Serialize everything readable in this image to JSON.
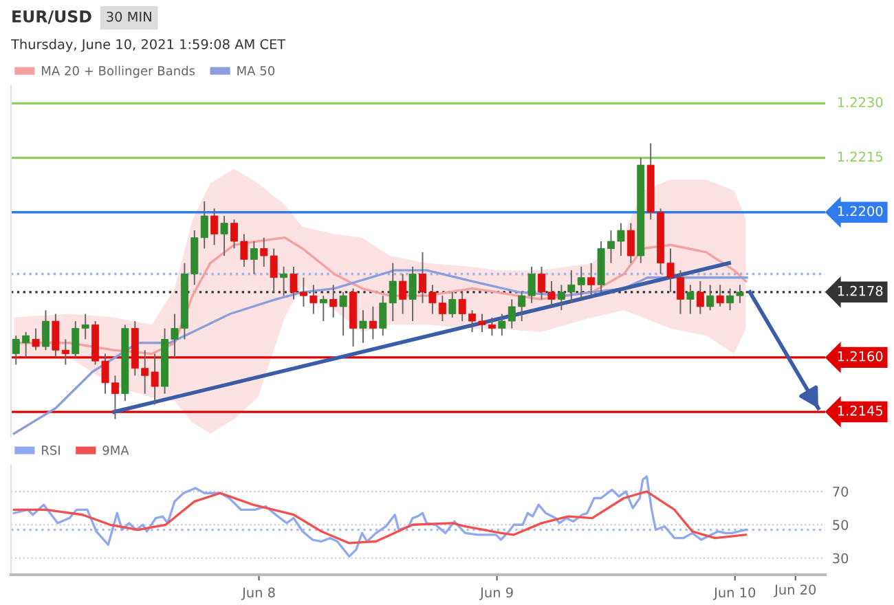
{
  "chart_data": [
    {
      "type": "candlestick",
      "title": "EUR/USD",
      "subtitle": "Thursday, June 10, 2021 1:59:08 AM CET",
      "annotations": [
        "30 MIN"
      ],
      "x": [
        "2021-06-06T23:30",
        "2021-06-07T00:30",
        "2021-06-07T01:30",
        "2021-06-07T02:30",
        "2021-06-07T03:30",
        "2021-06-07T04:30",
        "2021-06-07T05:30",
        "2021-06-07T06:30",
        "2021-06-07T07:30",
        "2021-06-07T08:30",
        "2021-06-07T09:30",
        "2021-06-07T10:30",
        "2021-06-07T11:30",
        "2021-06-07T12:30",
        "2021-06-07T13:30",
        "2021-06-07T14:30",
        "2021-06-07T15:30",
        "2021-06-07T16:30",
        "2021-06-07T17:30",
        "2021-06-07T18:30",
        "2021-06-07T19:30",
        "2021-06-07T20:30",
        "2021-06-07T21:30",
        "2021-06-07T22:30",
        "2021-06-07T23:30",
        "2021-06-08T00:30",
        "2021-06-08T01:30",
        "2021-06-08T02:30",
        "2021-06-08T03:30",
        "2021-06-08T04:30",
        "2021-06-08T05:30",
        "2021-06-08T06:30",
        "2021-06-08T07:30",
        "2021-06-08T08:30",
        "2021-06-08T09:30",
        "2021-06-08T10:30",
        "2021-06-08T11:30",
        "2021-06-08T12:30",
        "2021-06-08T13:30",
        "2021-06-08T14:30",
        "2021-06-08T15:30",
        "2021-06-08T16:30",
        "2021-06-08T17:30",
        "2021-06-08T18:30",
        "2021-06-08T19:30",
        "2021-06-08T20:30",
        "2021-06-08T21:30",
        "2021-06-08T22:30",
        "2021-06-08T23:30",
        "2021-06-09T00:30",
        "2021-06-09T01:30",
        "2021-06-09T02:30",
        "2021-06-09T03:30",
        "2021-06-09T04:30",
        "2021-06-09T05:30",
        "2021-06-09T06:30",
        "2021-06-09T07:30",
        "2021-06-09T08:30",
        "2021-06-09T09:30",
        "2021-06-09T10:30",
        "2021-06-09T11:30",
        "2021-06-09T12:30",
        "2021-06-09T13:30",
        "2021-06-09T14:30",
        "2021-06-09T15:30",
        "2021-06-09T16:30",
        "2021-06-09T17:30",
        "2021-06-09T18:30",
        "2021-06-09T19:30",
        "2021-06-09T20:30",
        "2021-06-09T21:30",
        "2021-06-09T22:30",
        "2021-06-09T23:30",
        "2021-06-10T00:30"
      ],
      "ohlc": [
        [
          1.2161,
          1.2166,
          1.2158,
          1.2165
        ],
        [
          1.2164,
          1.2167,
          1.216,
          1.2166
        ],
        [
          1.2165,
          1.2168,
          1.2162,
          1.2163
        ],
        [
          1.2163,
          1.2173,
          1.2162,
          1.217
        ],
        [
          1.217,
          1.2172,
          1.216,
          1.2162
        ],
        [
          1.2162,
          1.2165,
          1.2158,
          1.2161
        ],
        [
          1.2161,
          1.217,
          1.216,
          1.2168
        ],
        [
          1.2168,
          1.2172,
          1.2165,
          1.2169
        ],
        [
          1.2169,
          1.217,
          1.2158,
          1.2159
        ],
        [
          1.2159,
          1.2161,
          1.215,
          1.2153
        ],
        [
          1.2153,
          1.2155,
          1.2143,
          1.215
        ],
        [
          1.215,
          1.2169,
          1.2148,
          1.2168
        ],
        [
          1.2168,
          1.217,
          1.2155,
          1.2157
        ],
        [
          1.2157,
          1.2162,
          1.215,
          1.2155
        ],
        [
          1.2156,
          1.2161,
          1.2147,
          1.2152
        ],
        [
          1.2152,
          1.2168,
          1.215,
          1.2165
        ],
        [
          1.2165,
          1.2172,
          1.216,
          1.2168
        ],
        [
          1.2168,
          1.2186,
          1.2165,
          1.2183
        ],
        [
          1.2183,
          1.2195,
          1.218,
          1.2193
        ],
        [
          1.2193,
          1.2203,
          1.219,
          1.2199
        ],
        [
          1.2199,
          1.2201,
          1.2191,
          1.2194
        ],
        [
          1.2194,
          1.2199,
          1.2188,
          1.2197
        ],
        [
          1.2197,
          1.2198,
          1.219,
          1.2192
        ],
        [
          1.2192,
          1.2194,
          1.2185,
          1.2187
        ],
        [
          1.2187,
          1.2192,
          1.2183,
          1.219
        ],
        [
          1.219,
          1.2193,
          1.2185,
          1.2188
        ],
        [
          1.2188,
          1.219,
          1.2178,
          1.2182
        ],
        [
          1.2182,
          1.2185,
          1.2177,
          1.2183
        ],
        [
          1.2183,
          1.2185,
          1.2176,
          1.2178
        ],
        [
          1.2178,
          1.2182,
          1.2174,
          1.2177
        ],
        [
          1.2177,
          1.218,
          1.2172,
          1.2175
        ],
        [
          1.2175,
          1.2177,
          1.217,
          1.2176
        ],
        [
          1.2176,
          1.218,
          1.2171,
          1.2174
        ],
        [
          1.2174,
          1.2178,
          1.2166,
          1.2177
        ],
        [
          1.2178,
          1.2179,
          1.2163,
          1.2168
        ],
        [
          1.2168,
          1.2173,
          1.2164,
          1.217
        ],
        [
          1.217,
          1.2174,
          1.2165,
          1.2168
        ],
        [
          1.2168,
          1.2177,
          1.2166,
          1.2175
        ],
        [
          1.2175,
          1.2186,
          1.217,
          1.2181
        ],
        [
          1.2181,
          1.2183,
          1.2172,
          1.2176
        ],
        [
          1.2176,
          1.2185,
          1.217,
          1.2183
        ],
        [
          1.2183,
          1.2189,
          1.2175,
          1.2178
        ],
        [
          1.2178,
          1.218,
          1.2172,
          1.2175
        ],
        [
          1.2175,
          1.2177,
          1.217,
          1.2172
        ],
        [
          1.2172,
          1.2178,
          1.2171,
          1.2176
        ],
        [
          1.2176,
          1.2178,
          1.217,
          1.2172
        ],
        [
          1.2172,
          1.2173,
          1.2167,
          1.217
        ],
        [
          1.217,
          1.2172,
          1.2167,
          1.2169
        ],
        [
          1.2169,
          1.2171,
          1.2166,
          1.2168
        ],
        [
          1.2168,
          1.2172,
          1.2166,
          1.217
        ],
        [
          1.217,
          1.2176,
          1.2168,
          1.2174
        ],
        [
          1.2174,
          1.2178,
          1.217,
          1.2177
        ],
        [
          1.2177,
          1.2185,
          1.2175,
          1.2183
        ],
        [
          1.2183,
          1.2185,
          1.2176,
          1.2178
        ],
        [
          1.2178,
          1.2181,
          1.2174,
          1.2176
        ],
        [
          1.2176,
          1.218,
          1.2173,
          1.2178
        ],
        [
          1.2178,
          1.2184,
          1.2175,
          1.218
        ],
        [
          1.218,
          1.2185,
          1.2176,
          1.2182
        ],
        [
          1.2182,
          1.2186,
          1.2177,
          1.218
        ],
        [
          1.218,
          1.2192,
          1.2178,
          1.219
        ],
        [
          1.219,
          1.2195,
          1.2186,
          1.2192
        ],
        [
          1.2192,
          1.2197,
          1.2188,
          1.2195
        ],
        [
          1.2195,
          1.2197,
          1.2186,
          1.2188
        ],
        [
          1.2188,
          1.2215,
          1.2186,
          1.2213
        ],
        [
          1.2213,
          1.2219,
          1.2198,
          1.22
        ],
        [
          1.22,
          1.2201,
          1.2183,
          1.2186
        ],
        [
          1.2186,
          1.219,
          1.2178,
          1.2182
        ],
        [
          1.2182,
          1.2184,
          1.2172,
          1.2176
        ],
        [
          1.2176,
          1.218,
          1.2172,
          1.2178
        ],
        [
          1.2178,
          1.2181,
          1.2172,
          1.2174
        ],
        [
          1.2174,
          1.218,
          1.2173,
          1.2177
        ],
        [
          1.2177,
          1.218,
          1.2174,
          1.2175
        ],
        [
          1.2175,
          1.2179,
          1.2173,
          1.2177
        ],
        [
          1.2177,
          1.218,
          1.2175,
          1.2178
        ]
      ],
      "series": [
        {
          "name": "MA 20 + Bollinger Bands",
          "type": "line",
          "color": "#f4a0a0",
          "x": [
            "2021-06-06T23:18",
            "2021-06-07T04:54",
            "2021-06-07T09:24",
            "2021-06-07T13:12",
            "2021-06-07T15:30",
            "2021-06-07T17:18",
            "2021-06-07T19:06",
            "2021-06-07T21:30",
            "2021-06-07T23:54",
            "2021-06-08T02:36",
            "2021-06-08T04:24",
            "2021-06-08T07:36",
            "2021-06-08T10:24",
            "2021-06-08T13:12",
            "2021-06-08T16:54",
            "2021-06-08T21:30",
            "2021-06-08T23:54",
            "2021-06-09T04:24",
            "2021-06-09T09:36",
            "2021-06-09T12:48",
            "2021-06-09T14:42",
            "2021-06-09T17:30",
            "2021-06-09T21:06",
            "2021-06-09T23:54",
            "2021-06-10T01:06"
          ],
          "values": [
            1.2164,
            1.2164,
            1.2162,
            1.2161,
            1.2164,
            1.2177,
            1.2186,
            1.2191,
            1.2192,
            1.2193,
            1.219,
            1.2183,
            1.2179,
            1.2177,
            1.2177,
            1.2179,
            1.2178,
            1.2176,
            1.2178,
            1.2183,
            1.219,
            1.2191,
            1.2189,
            1.2184,
            1.2181
          ],
          "lower": [
            1.216,
            1.216,
            1.2152,
            1.2149,
            1.2148,
            1.2142,
            1.2139,
            1.2143,
            1.2149,
            1.2171,
            1.218,
            1.2173,
            1.2167,
            1.2169,
            1.2169,
            1.2168,
            1.2168,
            1.2167,
            1.2171,
            1.2173,
            1.2171,
            1.2168,
            1.2166,
            1.2161,
            1.2168
          ],
          "upper": [
            1.2171,
            1.2172,
            1.2171,
            1.2169,
            1.2179,
            1.2198,
            1.2208,
            1.2212,
            1.2208,
            1.2202,
            1.2196,
            1.2194,
            1.2193,
            1.2188,
            1.2186,
            1.2185,
            1.2184,
            1.2184,
            1.2186,
            1.2194,
            1.2206,
            1.2209,
            1.2209,
            1.2206,
            1.2198
          ]
        },
        {
          "name": "MA 50",
          "type": "line",
          "color": "#8c9fdc",
          "x": [
            "2021-06-06T23:18",
            "2021-06-07T03:30",
            "2021-06-07T07:12",
            "2021-06-07T11:48",
            "2021-06-07T15:00",
            "2021-06-07T17:18",
            "2021-06-07T21:06",
            "2021-06-08T01:42",
            "2021-06-08T04:24",
            "2021-06-08T07:36",
            "2021-06-08T13:42",
            "2021-06-08T16:54",
            "2021-06-08T21:30",
            "2021-06-09T02:12",
            "2021-06-09T06:48",
            "2021-06-09T09:36",
            "2021-06-09T12:48",
            "2021-06-09T15:12",
            "2021-06-09T17:30",
            "2021-06-10T01:12"
          ],
          "values": [
            1.2139,
            1.2146,
            1.2156,
            1.2164,
            1.2164,
            1.2167,
            1.2172,
            1.2176,
            1.2178,
            1.2179,
            1.2184,
            1.2184,
            1.2181,
            1.2178,
            1.2177,
            1.2178,
            1.2179,
            1.2182,
            1.2182,
            1.2182
          ]
        },
        {
          "type": "line",
          "color": "#3b5ca6",
          "x": [
            "2021-06-07T09:24",
            "2021-06-09T23:24"
          ],
          "values": [
            1.2145,
            1.2186
          ]
        },
        {
          "type": "line",
          "color": "#3b5ca6",
          "x": [
            "2021-06-10T01:30",
            "2021-06-10T08:24"
          ],
          "values": [
            1.2178,
            1.2146
          ]
        }
      ],
      "ref_lines": [
        {
          "axis": "y",
          "value": 1.223,
          "label": "1.2230",
          "color": "#8fcf5f"
        },
        {
          "axis": "y",
          "value": 1.2215,
          "label": "1.2215",
          "color": "#8fcf5f"
        },
        {
          "axis": "y",
          "value": 1.22,
          "label": "1.2200",
          "color": "#2f7bf0"
        },
        {
          "axis": "y",
          "value": 1.2183,
          "color": "#9fb4e8",
          "line_style": "dotted"
        },
        {
          "axis": "y",
          "value": 1.2178,
          "label": "1.2178",
          "color": "#333333",
          "line_style": "dotted"
        },
        {
          "axis": "y",
          "value": 1.216,
          "label": "1.2160",
          "color": "#e00000"
        },
        {
          "axis": "y",
          "value": 1.2145,
          "label": "1.2145",
          "color": "#e00000"
        }
      ],
      "xlim": [
        "2021-06-06T23:00",
        "2021-06-10T09:06"
      ],
      "ylim": [
        1.2138,
        1.2235
      ],
      "tick_labels": false,
      "legend": "top left",
      "grid": false
    },
    {
      "type": "line",
      "series": [
        {
          "name": "RSI",
          "color": "#90a8ee",
          "x": [
            "2021-06-06T23:18",
            "2021-06-07T00:42",
            "2021-06-07T01:12",
            "2021-06-07T02:18",
            "2021-06-07T03:42",
            "2021-06-07T04:54",
            "2021-06-07T05:36",
            "2021-06-07T06:42",
            "2021-06-07T07:36",
            "2021-06-07T08:48",
            "2021-06-07T09:42",
            "2021-06-07T10:12",
            "2021-06-07T10:54",
            "2021-06-07T11:36",
            "2021-06-07T12:18",
            "2021-06-07T12:42",
            "2021-06-07T13:36",
            "2021-06-07T14:18",
            "2021-06-07T14:48",
            "2021-06-07T15:30",
            "2021-06-07T16:24",
            "2021-06-07T17:36",
            "2021-06-07T18:30",
            "2021-06-07T20:06",
            "2021-06-07T21:00",
            "2021-06-07T22:12",
            "2021-06-07T23:36",
            "2021-06-08T00:42",
            "2021-06-08T01:42",
            "2021-06-08T02:48",
            "2021-06-08T03:30",
            "2021-06-08T04:24",
            "2021-06-08T05:24",
            "2021-06-08T06:18",
            "2021-06-08T07:12",
            "2021-06-08T07:54",
            "2021-06-08T09:06",
            "2021-06-08T09:48",
            "2021-06-08T10:24",
            "2021-06-08T10:54",
            "2021-06-08T11:48",
            "2021-06-08T12:48",
            "2021-06-08T13:42",
            "2021-06-08T14:06",
            "2021-06-08T15:06",
            "2021-06-08T15:30",
            "2021-06-08T16:00",
            "2021-06-08T16:30",
            "2021-06-08T16:54",
            "2021-06-08T17:48",
            "2021-06-08T18:48",
            "2021-06-08T19:42",
            "2021-06-08T20:48",
            "2021-06-08T22:06",
            "2021-06-08T23:54",
            "2021-06-09T00:24",
            "2021-06-09T01:12",
            "2021-06-09T01:42",
            "2021-06-09T02:36",
            "2021-06-09T03:06",
            "2021-06-09T03:36",
            "2021-06-09T04:12",
            "2021-06-09T04:54",
            "2021-06-09T05:54",
            "2021-06-09T06:18",
            "2021-06-09T07:00",
            "2021-06-09T07:42",
            "2021-06-09T08:36",
            "2021-06-09T09:06",
            "2021-06-09T09:48",
            "2021-06-09T10:30",
            "2021-06-09T11:36",
            "2021-06-09T12:18",
            "2021-06-09T13:00",
            "2021-06-09T13:42",
            "2021-06-09T14:24",
            "2021-06-09T14:42",
            "2021-06-09T15:06",
            "2021-06-09T15:36",
            "2021-06-09T16:00",
            "2021-06-09T16:54",
            "2021-06-09T17:54",
            "2021-06-09T18:48",
            "2021-06-09T19:42",
            "2021-06-09T20:36",
            "2021-06-09T21:36",
            "2021-06-09T22:18",
            "2021-06-09T23:00",
            "2021-06-09T23:42",
            "2021-06-10T00:24",
            "2021-06-10T01:06"
          ],
          "values": [
            57,
            59,
            56,
            62,
            51,
            54,
            59,
            59,
            46,
            38,
            57,
            47,
            51,
            47,
            50,
            46,
            54,
            55,
            51,
            64,
            69,
            72,
            69,
            69,
            66,
            59,
            59,
            61,
            56,
            51,
            54,
            46,
            41,
            40,
            42,
            40,
            31,
            35,
            45,
            40,
            45,
            49,
            56,
            47,
            49,
            54,
            55,
            57,
            51,
            50,
            45,
            52,
            45,
            44,
            44,
            41,
            46,
            50,
            50,
            57,
            55,
            62,
            57,
            54,
            51,
            54,
            52,
            56,
            57,
            66,
            66,
            71,
            67,
            70,
            60,
            66,
            77,
            79,
            59,
            47,
            49,
            42,
            42,
            45,
            41,
            44,
            46,
            45,
            45,
            46,
            47
          ]
        },
        {
          "name": "9MA",
          "color": "#f05050",
          "x": [
            "2021-06-06T23:18",
            "2021-06-07T02:30",
            "2021-06-07T06:12",
            "2021-06-07T09:00",
            "2021-06-07T11:48",
            "2021-06-07T14:36",
            "2021-06-07T17:30",
            "2021-06-07T20:06",
            "2021-06-07T23:24",
            "2021-06-08T03:30",
            "2021-06-08T06:18",
            "2021-06-08T09:06",
            "2021-06-08T11:48",
            "2021-06-08T15:30",
            "2021-06-08T19:30",
            "2021-06-08T20:48",
            "2021-06-09T00:24",
            "2021-06-09T01:42",
            "2021-06-09T04:30",
            "2021-06-09T07:12",
            "2021-06-09T09:36",
            "2021-06-09T12:48",
            "2021-06-09T15:06",
            "2021-06-09T17:54",
            "2021-06-09T19:42",
            "2021-06-09T22:00",
            "2021-06-10T01:06"
          ],
          "values": [
            59,
            59,
            56,
            50,
            47,
            50,
            64,
            69,
            62,
            56,
            46,
            39,
            40,
            50,
            51,
            49,
            45,
            44,
            51,
            55,
            54,
            66,
            70,
            59,
            46,
            42,
            44
          ]
        }
      ],
      "ref_lines": [
        {
          "axis": "y",
          "value": 47,
          "color": "#a8bdf0",
          "line_style": "dotted"
        }
      ],
      "xlim": [
        "2021-06-06T23:00",
        "2021-06-10T09:06"
      ],
      "ylim": [
        20,
        86
      ],
      "yticks": [
        30,
        50,
        70
      ],
      "xticks": [
        {
          "value": "2021-06-08",
          "label": "Jun 8"
        },
        {
          "value": "2021-06-09",
          "label": "Jun 9"
        },
        {
          "value": "2021-06-10",
          "label": "Jun 10"
        },
        {
          "value": "2021-06-10T06:06",
          "label": null
        }
      ],
      "annotations": [
        "Jun 20"
      ],
      "grid": "y",
      "legend": "top left"
    }
  ]
}
